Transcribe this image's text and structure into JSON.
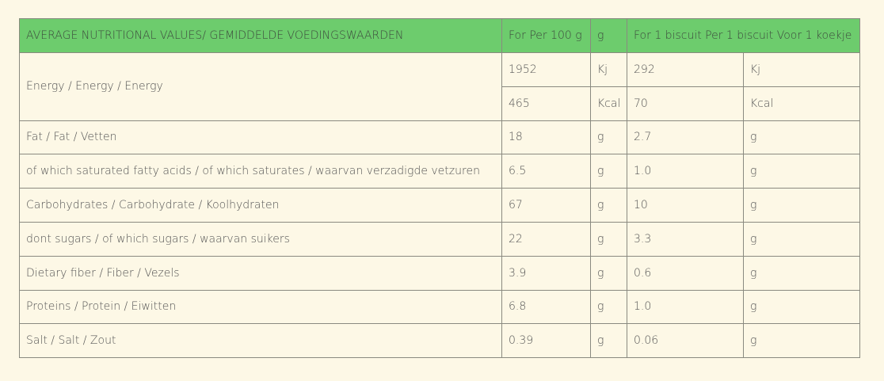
{
  "table": {
    "header": [
      "AVERAGE NUTRITIONAL VALUES/ GEMIDDELDE VOEDINGSWAARDEN",
      "For Per 100 g",
      "g",
      "For 1 biscuit Per 1 biscuit Voor 1 koekje"
    ],
    "rows": [
      {
        "label": "Energy / Energy / Energy",
        "entries": [
          [
            "1952",
            "Kj",
            "292",
            "Kj"
          ],
          [
            "465",
            "Kcal",
            "70",
            "Kcal"
          ]
        ]
      },
      {
        "label": "Fat / Fat / Vetten",
        "entries": [
          [
            "18",
            "g",
            "2.7",
            "g"
          ]
        ]
      },
      {
        "label": "of which saturated fatty acids / of which saturates / waarvan verzadigde vetzuren",
        "entries": [
          [
            "6.5",
            "g",
            "1.0",
            "g"
          ]
        ]
      },
      {
        "label": "Carbohydrates / Carbohydrate / Koolhydraten",
        "entries": [
          [
            "67",
            "g",
            "10",
            "g"
          ]
        ]
      },
      {
        "label": "dont sugars / of which sugars / waarvan suikers",
        "entries": [
          [
            "22",
            "g",
            "3.3",
            "g"
          ]
        ]
      },
      {
        "label": "Dietary fiber / Fiber / Vezels",
        "entries": [
          [
            "3.9",
            "g",
            "0.6",
            "g"
          ]
        ]
      },
      {
        "label": "Proteins / Protein / Eiwitten",
        "entries": [
          [
            "6.8",
            "g",
            "1.0",
            "g"
          ]
        ]
      },
      {
        "label": "Salt / Salt / Zout",
        "entries": [
          [
            "0.39",
            "g",
            "0.06",
            "g"
          ]
        ]
      }
    ]
  }
}
